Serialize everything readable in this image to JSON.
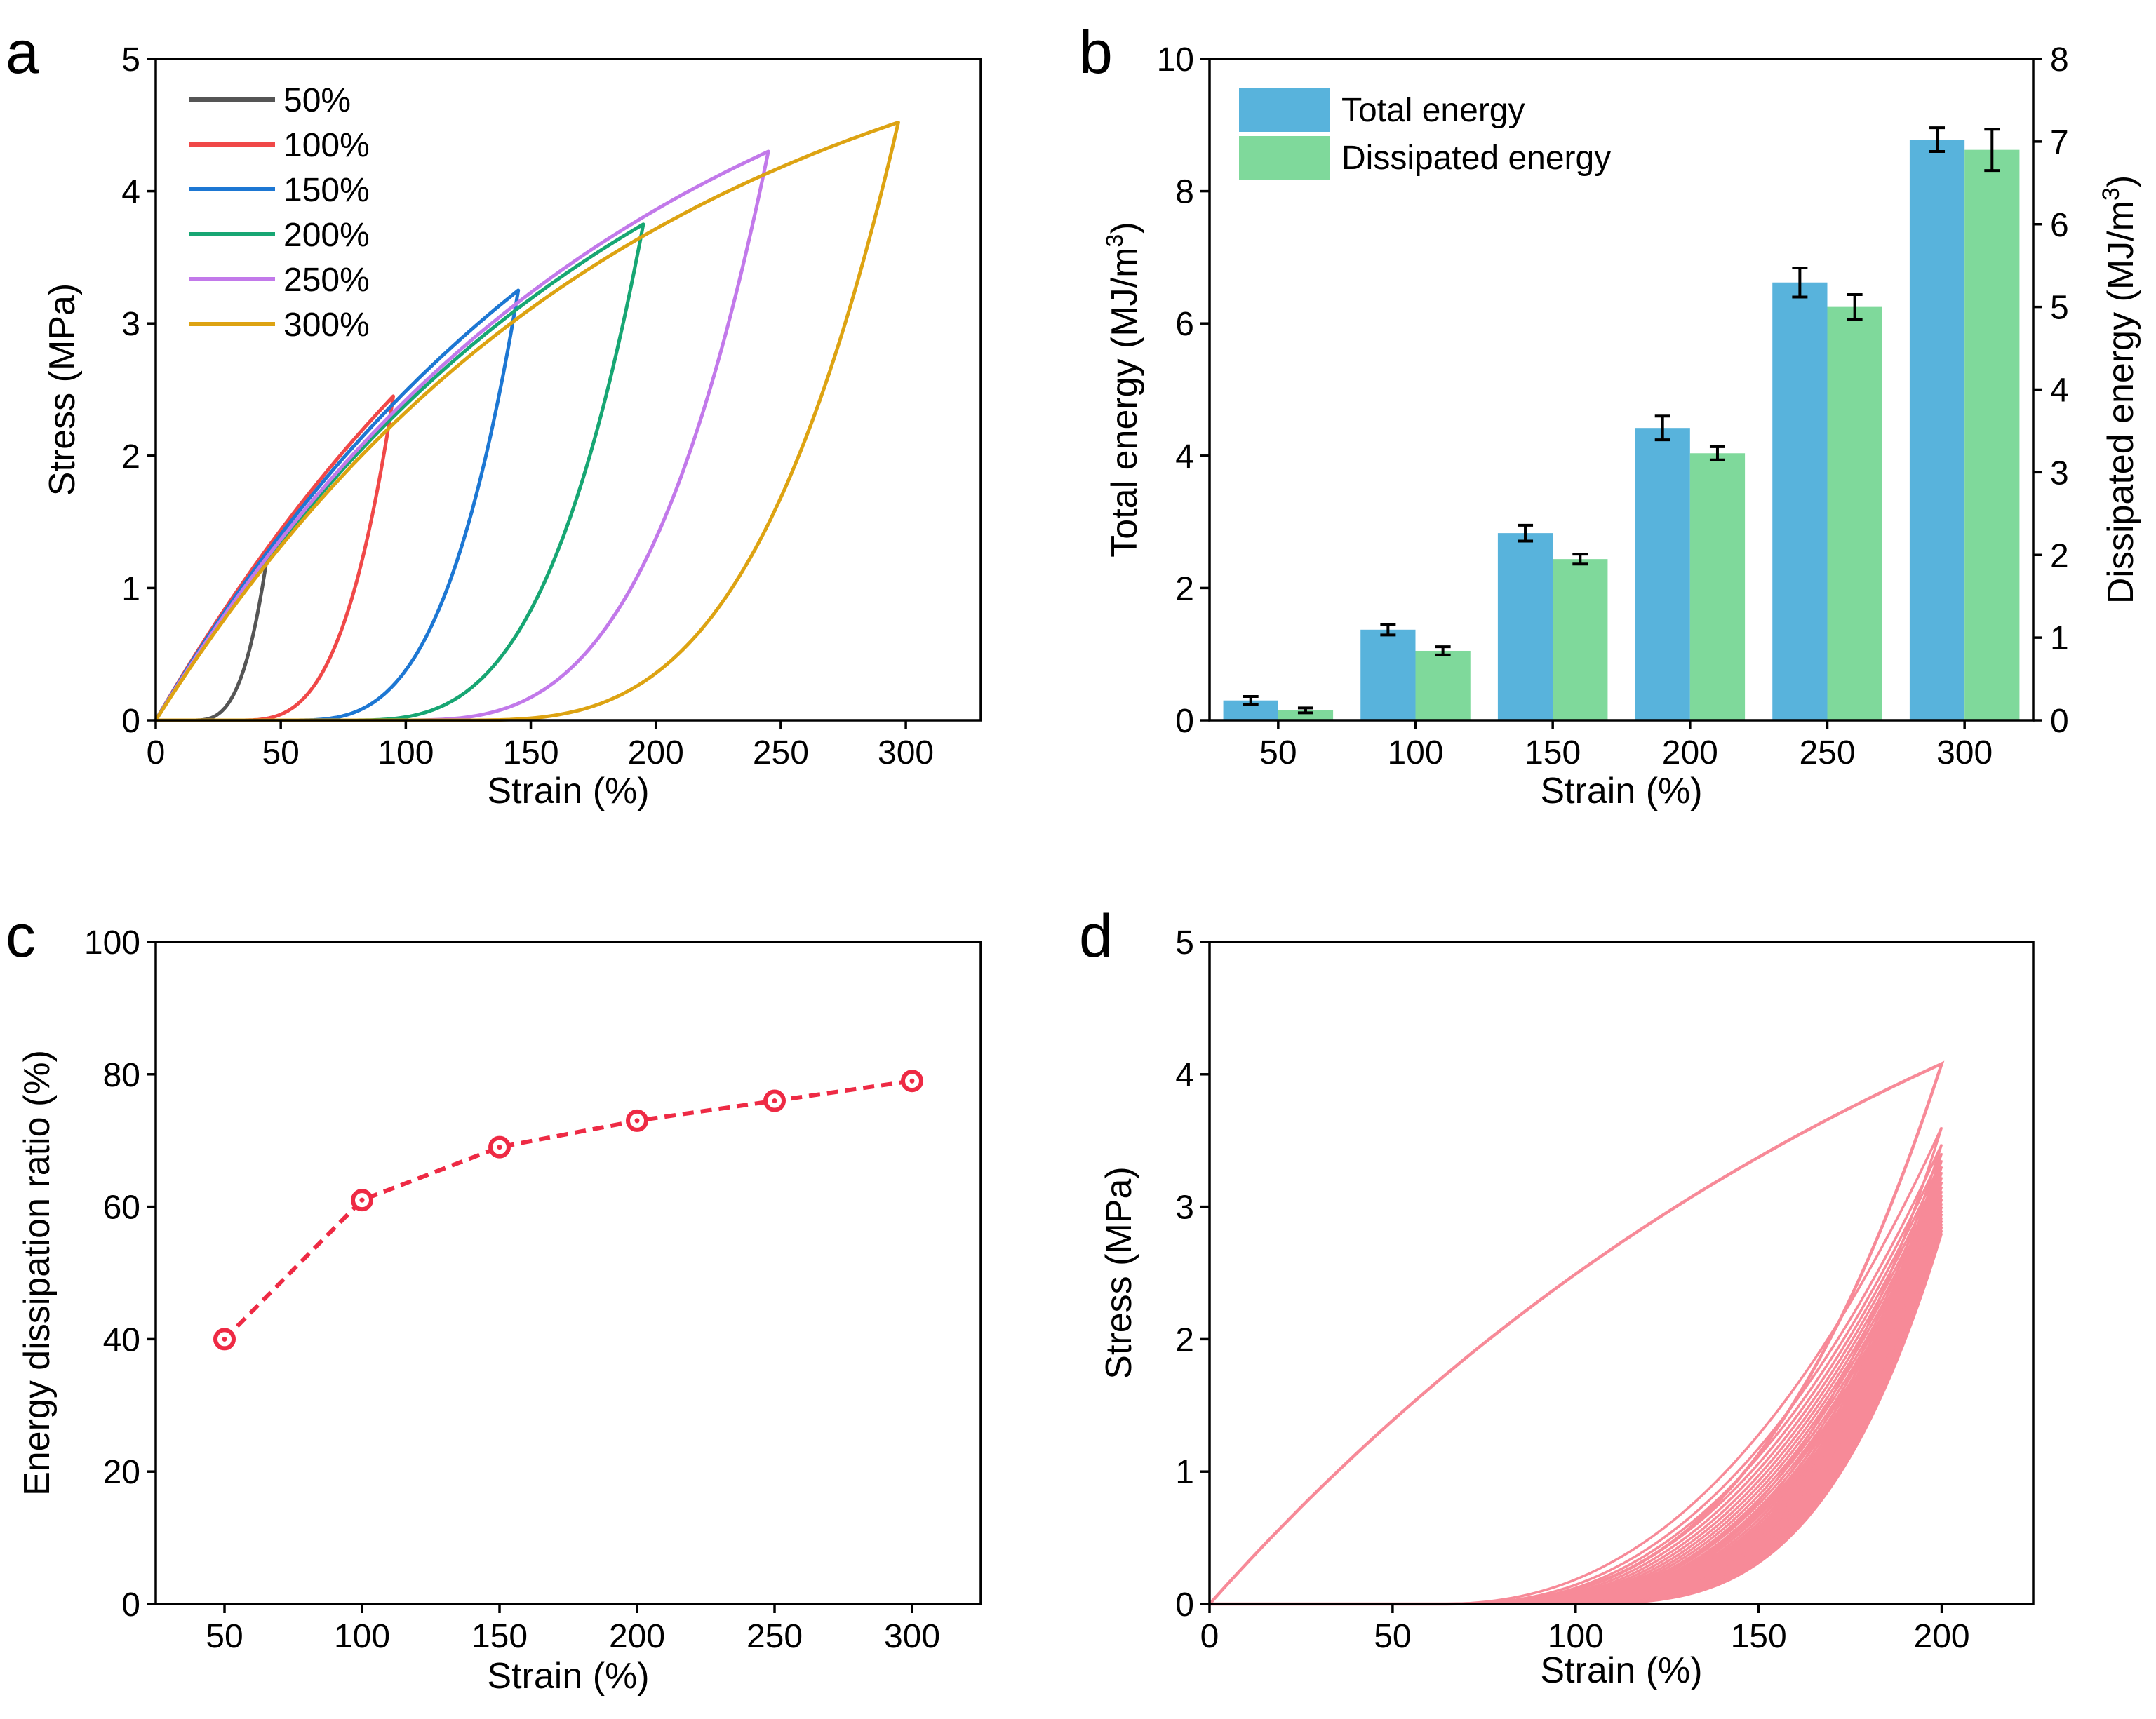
{
  "chart_data": [
    {
      "panel": "a",
      "type": "line",
      "xlabel": "Strain (%)",
      "ylabel": "Stress (MPa)",
      "xlim": [
        0,
        330
      ],
      "ylim": [
        0,
        5
      ],
      "xticks": [
        "0",
        "50",
        "100",
        "150",
        "200",
        "250",
        "300"
      ],
      "yticks": [
        "0",
        "1",
        "2",
        "3",
        "4",
        "5"
      ],
      "legend_position": "top-left",
      "series": [
        {
          "name": "50%",
          "color": "#555555",
          "max_strain": 45,
          "peak_stress": 1.3,
          "residual_strain": 14
        },
        {
          "name": "100%",
          "color": "#f04848",
          "max_strain": 95,
          "peak_stress": 2.45,
          "residual_strain": 32
        },
        {
          "name": "150%",
          "color": "#1d77d3",
          "max_strain": 145,
          "peak_stress": 3.25,
          "residual_strain": 53
        },
        {
          "name": "200%",
          "color": "#17a673",
          "max_strain": 195,
          "peak_stress": 3.75,
          "residual_strain": 75
        },
        {
          "name": "250%",
          "color": "#c279ea",
          "max_strain": 245,
          "peak_stress": 4.3,
          "residual_strain": 95
        },
        {
          "name": "300%",
          "color": "#dda312",
          "max_strain": 297,
          "peak_stress": 4.52,
          "residual_strain": 120
        }
      ]
    },
    {
      "panel": "b",
      "type": "bar",
      "xlabel": "Strain (%)",
      "ylabel": "Total energy (MJ/m",
      "ylabel_sup": "3",
      "y2label": "Dissipated energy (MJ/m",
      "y2label_sup": "3",
      "categories": [
        "50",
        "100",
        "150",
        "200",
        "250",
        "300"
      ],
      "ylim": [
        0,
        10
      ],
      "y2lim": [
        0,
        8
      ],
      "yticks": [
        "0",
        "2",
        "4",
        "6",
        "8",
        "10"
      ],
      "y2ticks": [
        "0",
        "1",
        "2",
        "3",
        "4",
        "5",
        "6",
        "7",
        "8"
      ],
      "legend_position": "top-left",
      "series": [
        {
          "name": "Total energy",
          "axis": "left",
          "color": "#58b3dc",
          "values": [
            0.3,
            1.37,
            2.83,
            4.42,
            6.62,
            8.78
          ],
          "errors": [
            0.06,
            0.08,
            0.12,
            0.18,
            0.22,
            0.18
          ]
        },
        {
          "name": "Dissipated energy",
          "axis": "right",
          "color": "#7fd99b",
          "values": [
            0.12,
            0.84,
            1.95,
            3.23,
            5.0,
            6.9
          ],
          "errors": [
            0.03,
            0.05,
            0.06,
            0.08,
            0.15,
            0.25
          ]
        }
      ]
    },
    {
      "panel": "c",
      "type": "scatter",
      "xlabel": "Strain (%)",
      "ylabel": "Energy dissipation ratio (%)",
      "xlim": [
        25,
        325
      ],
      "ylim": [
        0,
        100
      ],
      "xticks": [
        "50",
        "100",
        "150",
        "200",
        "250",
        "300"
      ],
      "yticks": [
        "0",
        "20",
        "40",
        "60",
        "80",
        "100"
      ],
      "color": "#ee2a44",
      "x": [
        50,
        100,
        150,
        200,
        250,
        300
      ],
      "y": [
        40,
        61,
        69,
        73,
        76,
        79
      ]
    },
    {
      "panel": "d",
      "type": "line",
      "xlabel": "Strain (%)",
      "ylabel": "Stress (MPa)",
      "xlim": [
        0,
        225
      ],
      "ylim": [
        0,
        5
      ],
      "xticks": [
        "0",
        "50",
        "100",
        "150",
        "200"
      ],
      "yticks": [
        "0",
        "1",
        "2",
        "3",
        "4",
        "5"
      ],
      "color": "#f78a98",
      "max_strain": 200,
      "first_cycle_peak_stress": 4.08,
      "first_cycle_residual_strain": 60,
      "later_cycle_peak_stress_range": [
        2.8,
        3.6
      ],
      "later_cycle_residual_strain_range": [
        62,
        95
      ]
    }
  ]
}
